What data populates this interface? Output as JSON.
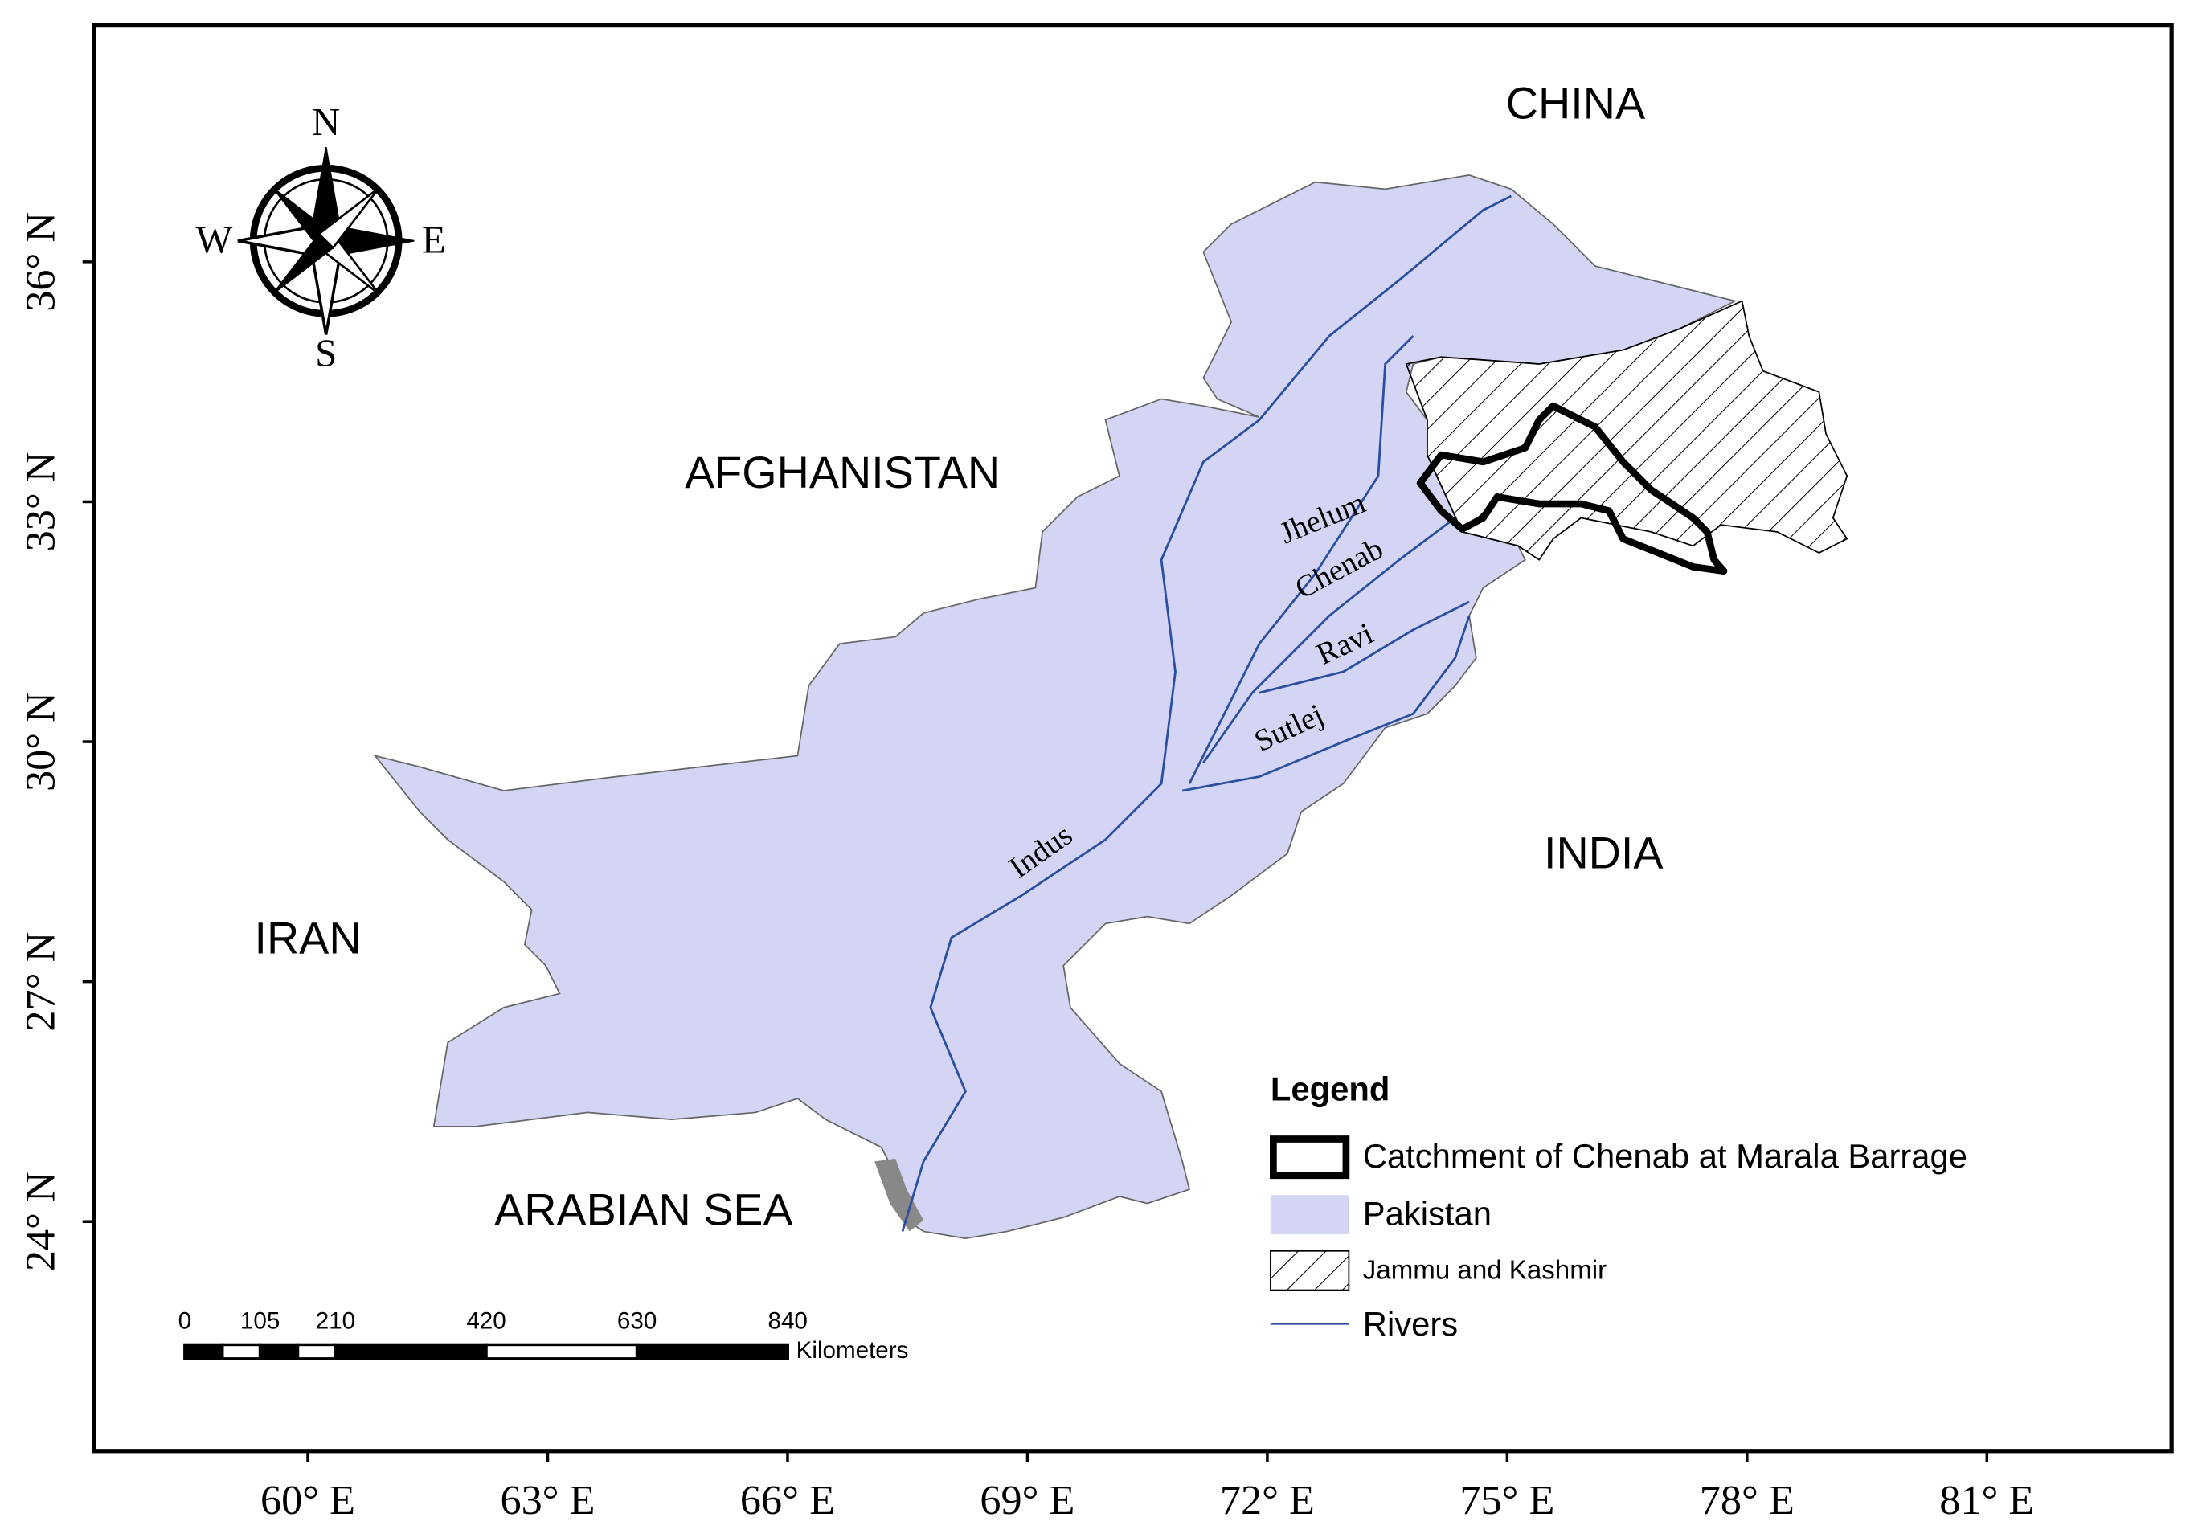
{
  "map": {
    "countries": [
      "CHINA",
      "AFGHANISTAN",
      "IRAN",
      "INDIA"
    ],
    "sea": "ARABIAN SEA",
    "rivers": [
      "Jhelum",
      "Chenab",
      "Ravi",
      "Sutlej",
      "Indus"
    ],
    "compass": {
      "north": "N",
      "south": "S",
      "east": "E",
      "west": "W"
    },
    "latitude_labels": [
      {
        "value": 24,
        "label": "24° N"
      },
      {
        "value": 27,
        "label": "27° N"
      },
      {
        "value": 30,
        "label": "30° N"
      },
      {
        "value": 33,
        "label": "33° N"
      },
      {
        "value": 36,
        "label": "36° N"
      }
    ],
    "longitude_labels": [
      {
        "value": 60,
        "label": "60° E"
      },
      {
        "value": 63,
        "label": "63° E"
      },
      {
        "value": 66,
        "label": "66° E"
      },
      {
        "value": 69,
        "label": "69° E"
      },
      {
        "value": 72,
        "label": "72° E"
      },
      {
        "value": 75,
        "label": "75° E"
      },
      {
        "value": 78,
        "label": "78° E"
      },
      {
        "value": 81,
        "label": "81° E"
      }
    ],
    "scale_bar": {
      "ticks": [
        0,
        105,
        210,
        420,
        630,
        840
      ],
      "unit": "Kilometers"
    },
    "legend": {
      "title": "Legend",
      "items": [
        "Catchment of Chenab at Marala Barrage",
        "Pakistan",
        "Jammu and Kashmir",
        "Rivers"
      ]
    }
  }
}
